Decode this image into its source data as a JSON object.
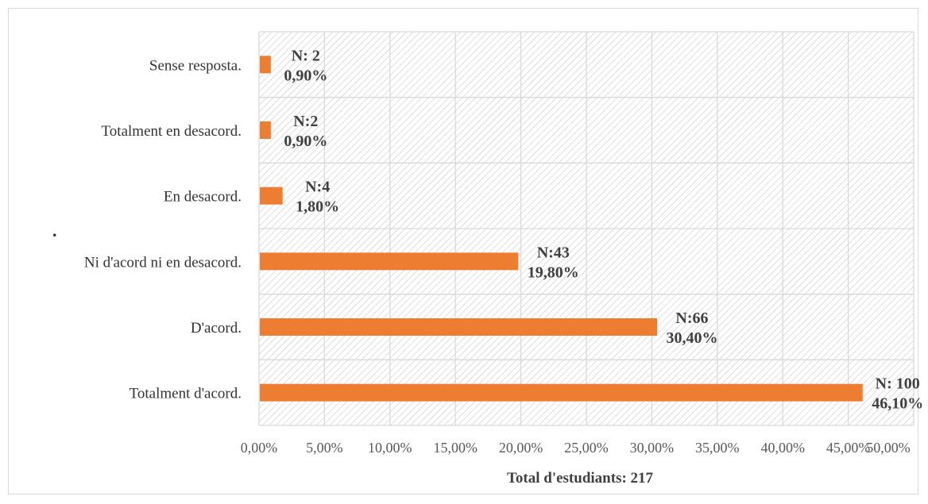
{
  "chart_data": {
    "type": "bar",
    "orientation": "horizontal",
    "categories": [
      "Sense resposta.",
      "Totalment en desacord.",
      "En desacord.",
      "Ni d'acord ni en desacord.",
      "D'acord.",
      "Totalment d'acord."
    ],
    "values": [
      0.9,
      0.9,
      1.8,
      19.8,
      30.4,
      46.1
    ],
    "counts": [
      "N: 2",
      "N:2",
      "N:4",
      "N:43",
      "N:66",
      "N: 100"
    ],
    "value_labels": [
      "0,90%",
      "0,90%",
      "1,80%",
      "19,80%",
      "30,40%",
      "46,10%"
    ],
    "xlim": [
      0,
      50
    ],
    "x_ticks": [
      "0,00%",
      "5,00%",
      "10,00%",
      "15,00%",
      "20,00%",
      "25,00%",
      "30,00%",
      "35,00%",
      "40,00%",
      "45,00%",
      "50,00%"
    ],
    "xlabel": "Total d'estudiants: 217",
    "ylabel": "",
    "title": "",
    "grid": true,
    "bar_color": "#ed7d31",
    "grid_color": "#d9d9d9"
  }
}
